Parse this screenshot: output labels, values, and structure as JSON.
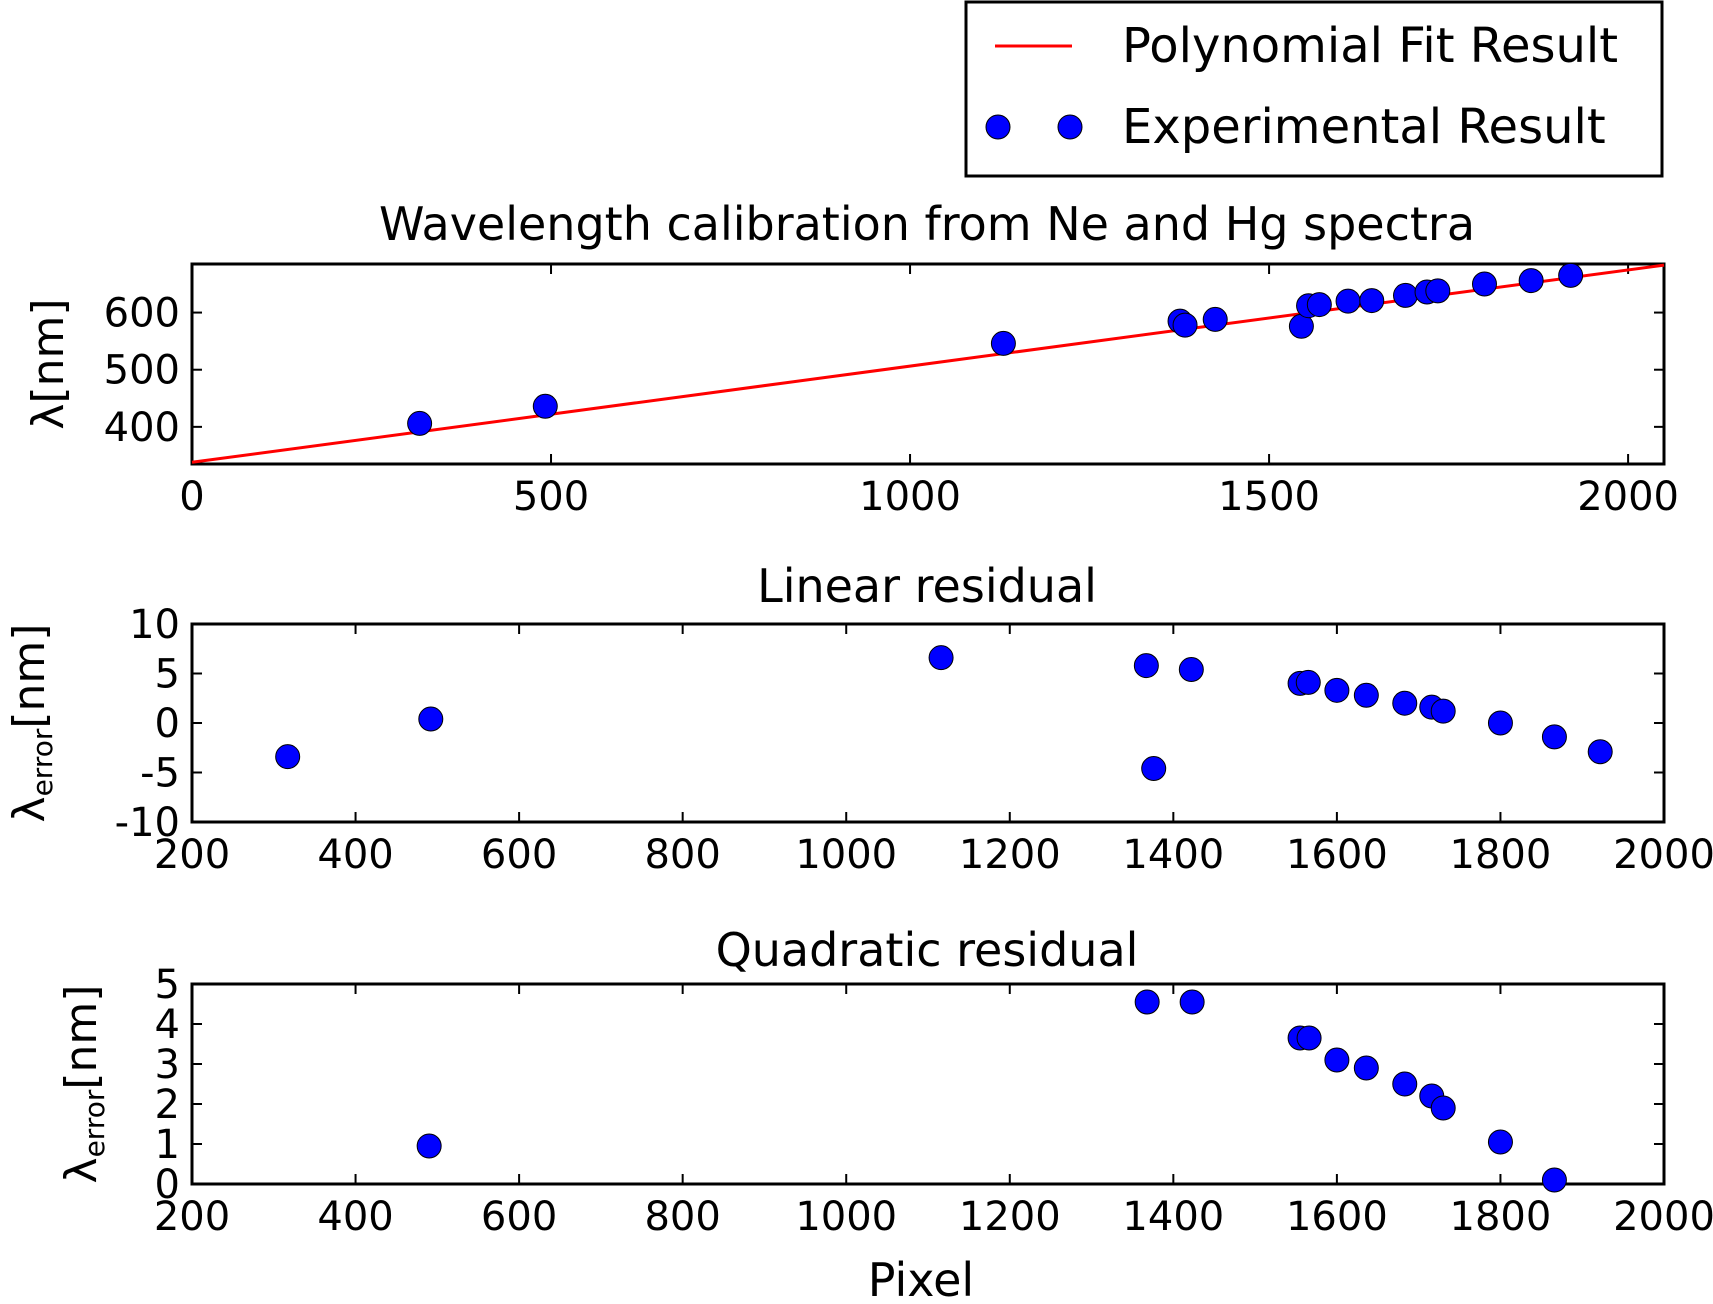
{
  "legend": {
    "items": [
      {
        "label": "Polynomial Fit Result",
        "marker": "line",
        "color": "#ff0000"
      },
      {
        "label": "Experimental Result",
        "marker": "dot",
        "color": "#0000ff"
      }
    ]
  },
  "chart_data": [
    {
      "type": "scatter",
      "title": "Wavelength calibration from Ne and Hg spectra",
      "xlabel": "",
      "ylabel": "λ[nm]",
      "xlim": [
        0,
        2050
      ],
      "ylim": [
        335,
        685
      ],
      "xticks": [
        0,
        500,
        1000,
        1500,
        2000
      ],
      "yticks": [
        400,
        500,
        600
      ],
      "grid": false,
      "series": [
        {
          "name": "Polynomial Fit Result",
          "kind": "line",
          "color": "#ff0000",
          "x": [
            0,
            2050
          ],
          "y": [
            338,
            683
          ]
        },
        {
          "name": "Experimental Result",
          "kind": "points",
          "color": "#0000ff",
          "x": [
            317,
            492,
            1130,
            1376,
            1383,
            1425,
            1545,
            1555,
            1570,
            1610,
            1643,
            1690,
            1720,
            1735,
            1800,
            1865,
            1920
          ],
          "y": [
            406,
            436,
            546,
            585,
            578,
            588,
            576,
            612,
            614,
            620,
            621,
            630,
            636,
            638,
            650,
            656,
            665
          ]
        }
      ]
    },
    {
      "type": "scatter",
      "title": "Linear residual",
      "xlabel": "",
      "ylabel": "λ_error[nm]",
      "ylabel_main": "λ",
      "ylabel_sub": "error",
      "ylabel_unit": "[nm]",
      "xlim": [
        200,
        2000
      ],
      "ylim": [
        -10,
        10
      ],
      "xticks": [
        200,
        400,
        600,
        800,
        1000,
        1200,
        1400,
        1600,
        1800,
        2000
      ],
      "yticks": [
        -10,
        -5,
        0,
        5,
        10
      ],
      "grid": false,
      "series": [
        {
          "name": "Experimental Result",
          "kind": "points",
          "color": "#0000ff",
          "x": [
            317,
            492,
            1116,
            1367,
            1376,
            1422,
            1555,
            1565,
            1600,
            1636,
            1683,
            1716,
            1730,
            1800,
            1866,
            1922
          ],
          "y": [
            -3.4,
            0.4,
            6.6,
            5.8,
            -4.6,
            5.4,
            4.0,
            4.1,
            3.3,
            2.8,
            2.0,
            1.6,
            1.2,
            0.0,
            -1.4,
            -2.9
          ]
        }
      ]
    },
    {
      "type": "scatter",
      "title": "Quadratic residual",
      "xlabel": "Pixel",
      "ylabel": "λ_error[nm]",
      "ylabel_main": "λ",
      "ylabel_sub": "error",
      "ylabel_unit": "[nm]",
      "xlim": [
        200,
        2000
      ],
      "ylim": [
        0,
        5
      ],
      "xticks": [
        200,
        400,
        600,
        800,
        1000,
        1200,
        1400,
        1600,
        1800,
        2000
      ],
      "yticks": [
        0,
        1,
        2,
        3,
        4,
        5
      ],
      "grid": false,
      "series": [
        {
          "name": "Experimental Result",
          "kind": "points",
          "color": "#0000ff",
          "x": [
            490,
            1368,
            1423,
            1555,
            1566,
            1600,
            1636,
            1683,
            1716,
            1730,
            1800,
            1866
          ],
          "y": [
            0.95,
            4.55,
            4.55,
            3.65,
            3.65,
            3.1,
            2.9,
            2.5,
            2.2,
            1.9,
            1.05,
            0.1
          ]
        }
      ]
    }
  ]
}
